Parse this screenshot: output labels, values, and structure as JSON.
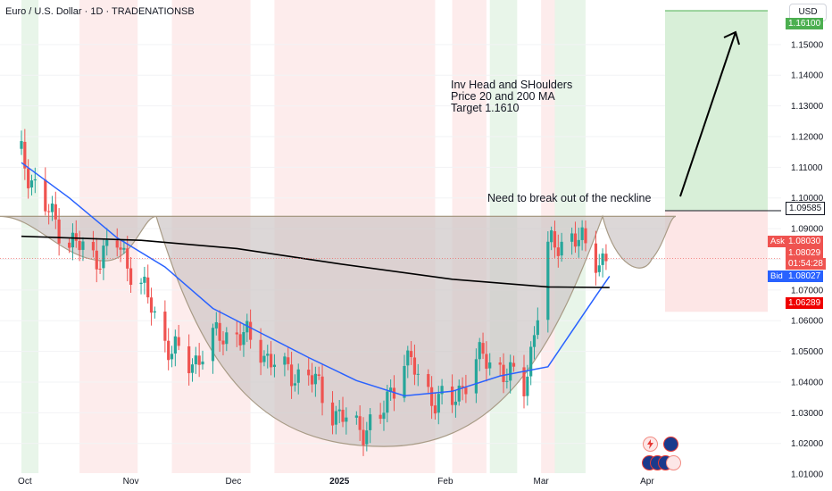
{
  "header": {
    "symbol_title": "Euro / U.S. Dollar · 1D · TRADENATIONSB",
    "currency": "USD"
  },
  "annotations": {
    "line1": "Inv Head and SHoulders",
    "line2": "Price 20 and 200 MA",
    "line3": "Target 1.1610",
    "neckline_note": "Need to break out of the neckline"
  },
  "price_tags": {
    "last_close": "1.09585",
    "ask_label": "Ask",
    "ask": "1.08030",
    "current": "1.08029",
    "countdown": "01:54:28",
    "bid_label": "Bid",
    "bid": "1.08027",
    "stop": "1.06289",
    "target": "1.16100"
  },
  "colors": {
    "up": "#26a69a",
    "down": "#ef5350",
    "ma20": "#2962ff",
    "ma200": "#000000",
    "pattern_fill": "#cdc6c6",
    "target_zone": "#d8efd8",
    "stop_zone": "#fde6e6",
    "ask": "#ef5350",
    "bid": "#2962ff"
  },
  "chart_data": {
    "type": "candlestick",
    "title": "Euro / U.S. Dollar · 1D · TRADENATIONSB",
    "y_axis": {
      "ticks": [
        "1.15000",
        "1.14000",
        "1.13000",
        "1.12000",
        "1.11000",
        "1.10000",
        "1.09000",
        "1.08000",
        "1.07000",
        "1.06000",
        "1.05000",
        "1.04000",
        "1.03000",
        "1.02000",
        "1.01000"
      ],
      "range": [
        1.0045,
        1.1645
      ]
    },
    "x_axis": {
      "labels": [
        "Oct",
        "Nov",
        "Dec",
        "2025",
        "Feb",
        "Mar",
        "Apr"
      ]
    },
    "x_range": [
      "2024-09-30",
      "2025-04-05"
    ],
    "series_close": [
      [
        "2024-09-30",
        1.1135
      ],
      [
        "2024-10-07",
        1.0965
      ],
      [
        "2024-10-14",
        1.0865
      ],
      [
        "2024-10-21",
        1.0805
      ],
      [
        "2024-10-28",
        1.0845
      ],
      [
        "2024-11-04",
        1.072
      ],
      [
        "2024-11-11",
        1.0535
      ],
      [
        "2024-11-18",
        1.045
      ],
      [
        "2024-11-25",
        1.054
      ],
      [
        "2024-12-02",
        1.0565
      ],
      [
        "2024-12-09",
        1.0505
      ],
      [
        "2024-12-16",
        1.043
      ],
      [
        "2024-12-23",
        1.0425
      ],
      [
        "2024-12-30",
        1.031
      ],
      [
        "2025-01-06",
        1.0245
      ],
      [
        "2025-01-13",
        1.0275
      ],
      [
        "2025-01-20",
        1.049
      ],
      [
        "2025-01-27",
        1.036
      ],
      [
        "2025-02-03",
        1.0325
      ],
      [
        "2025-02-10",
        1.048
      ],
      [
        "2025-02-17",
        1.045
      ],
      [
        "2025-02-24",
        1.0375
      ],
      [
        "2025-03-03",
        1.083
      ],
      [
        "2025-03-10",
        1.088
      ],
      [
        "2025-03-17",
        1.0803
      ]
    ],
    "indicators": [
      {
        "name": "MA 20",
        "color": "#2962ff",
        "points": [
          [
            "2024-09-30",
            1.1115
          ],
          [
            "2024-10-14",
            1.1
          ],
          [
            "2024-10-28",
            1.087
          ],
          [
            "2024-11-11",
            1.0775
          ],
          [
            "2024-11-25",
            1.064
          ],
          [
            "2024-12-09",
            1.056
          ],
          [
            "2024-12-23",
            1.048
          ],
          [
            "2025-01-06",
            1.0405
          ],
          [
            "2025-01-20",
            1.0355
          ],
          [
            "2025-02-03",
            1.037
          ],
          [
            "2025-02-17",
            1.042
          ],
          [
            "2025-03-03",
            1.045
          ],
          [
            "2025-03-17",
            1.068
          ],
          [
            "2025-03-21",
            1.0745
          ]
        ]
      },
      {
        "name": "MA 200",
        "color": "#000000",
        "points": [
          [
            "2024-09-30",
            1.0875
          ],
          [
            "2024-11-04",
            1.0862
          ],
          [
            "2024-12-02",
            1.0835
          ],
          [
            "2025-01-01",
            1.0785
          ],
          [
            "2025-02-03",
            1.0735
          ],
          [
            "2025-03-03",
            1.071
          ],
          [
            "2025-03-21",
            1.0708
          ]
        ]
      }
    ],
    "annotations": [
      "Inv Head and SHoulders",
      "Price 20 and 200 MA",
      "Target 1.1610",
      "Need to break out of the neckline"
    ],
    "neckline": 1.094,
    "target": 1.161,
    "stop": 1.06289,
    "entry": 1.09585
  }
}
